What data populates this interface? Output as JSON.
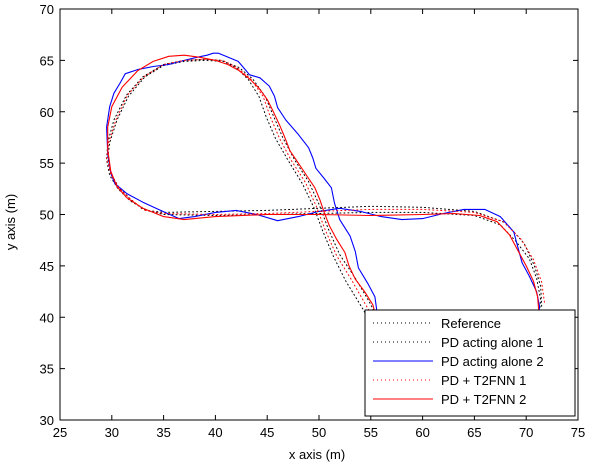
{
  "chart_data": {
    "type": "line",
    "title": "",
    "xlabel": "x axis (m)",
    "ylabel": "y axis (m)",
    "xlim": [
      25,
      75
    ],
    "ylim": [
      30,
      70
    ],
    "xticks": [
      "25",
      "30",
      "35",
      "40",
      "45",
      "50",
      "55",
      "60",
      "65",
      "70",
      "75"
    ],
    "yticks": [
      "30",
      "35",
      "40",
      "45",
      "50",
      "55",
      "60",
      "65",
      "70"
    ],
    "grid": false,
    "legend_position": "bottom-right",
    "series": [
      {
        "name": "Reference",
        "color": "#000000",
        "style": "dotted",
        "x": [
          56.0,
          54.8,
          53.5,
          52.0,
          50.9,
          50.0,
          49.0,
          47.6,
          46.5,
          45.6,
          44.8,
          43.6,
          42.3,
          40.8,
          39.0,
          37.0,
          35.0,
          33.2,
          31.6,
          30.5,
          29.8,
          29.6,
          29.9,
          30.7,
          31.8,
          33.0,
          35.0,
          40.0,
          45.0,
          50.0,
          55.0,
          60.0,
          65.0,
          67.5,
          69.0,
          70.3,
          71.0,
          71.4,
          71.2
        ],
        "y": [
          39.3,
          41.6,
          43.8,
          46.1,
          48.6,
          51.0,
          53.2,
          55.4,
          57.5,
          59.6,
          61.5,
          63.2,
          64.3,
          64.9,
          65.0,
          64.9,
          64.5,
          63.4,
          61.5,
          59.2,
          57.0,
          55.5,
          54.0,
          52.6,
          51.5,
          50.5,
          50.0,
          49.9,
          50.0,
          50.1,
          50.2,
          50.2,
          49.9,
          49.0,
          47.4,
          45.7,
          43.8,
          41.7,
          39.7
        ]
      },
      {
        "name": "PD acting alone 1",
        "color": "#000000",
        "style": "dotted",
        "x": [
          55.4,
          54.0,
          52.6,
          51.4,
          50.4,
          49.5,
          48.4,
          47.0,
          45.8,
          44.9,
          44.2,
          43.2,
          42.0,
          40.6,
          39.0,
          37.0,
          35.0,
          33.0,
          31.4,
          30.2,
          29.6,
          29.5,
          29.8,
          30.6,
          31.8,
          33.4,
          35.0,
          40.0,
          45.0,
          50.0,
          55.0,
          60.0,
          65.0,
          68.0,
          69.8,
          70.8,
          71.4,
          71.5
        ],
        "y": [
          38.8,
          41.2,
          43.5,
          45.9,
          48.3,
          50.7,
          53.0,
          55.3,
          57.4,
          59.5,
          61.5,
          63.1,
          64.3,
          65.0,
          65.1,
          65.0,
          64.6,
          63.4,
          61.6,
          59.2,
          57.0,
          55.3,
          53.8,
          52.5,
          51.3,
          50.4,
          50.2,
          50.3,
          50.4,
          50.6,
          50.8,
          50.7,
          50.3,
          49.2,
          47.2,
          45.0,
          43.0,
          41.0
        ]
      },
      {
        "name": "PD acting alone 2",
        "color": "#0000ff",
        "style": "solid",
        "x": [
          56.1,
          55.6,
          55.4,
          54.7,
          53.8,
          53.5,
          53.0,
          52.0,
          51.5,
          51.2,
          50.5,
          49.7,
          49.4,
          49.0,
          48.0,
          46.8,
          46.0,
          45.7,
          45.2,
          44.3,
          43.3,
          42.8,
          42.2,
          41.0,
          40.3,
          39.8,
          39.2,
          38.2,
          37.0,
          35.5,
          34.0,
          32.5,
          31.3,
          30.8,
          30.2,
          29.8,
          29.5,
          29.6,
          29.9,
          30.3,
          31.5,
          33.0,
          34.5,
          36.5,
          38.0,
          40.0,
          42.0,
          44.0,
          46.0,
          48.0,
          50.0,
          52.0,
          54.0,
          56.0,
          58.0,
          60.0,
          62.0,
          64.0,
          66.0,
          67.5,
          68.8,
          69.2,
          69.6,
          70.3,
          71.0,
          71.3,
          71.0
        ],
        "y": [
          38.9,
          40.5,
          42.0,
          43.3,
          44.8,
          46.4,
          47.9,
          49.5,
          51.1,
          52.6,
          53.5,
          54.5,
          55.5,
          56.5,
          57.8,
          59.2,
          60.4,
          61.5,
          62.5,
          63.3,
          63.6,
          64.2,
          64.9,
          65.4,
          65.7,
          65.7,
          65.5,
          65.3,
          65.0,
          64.6,
          64.4,
          64.1,
          63.7,
          62.8,
          61.8,
          60.5,
          58.5,
          56.0,
          54.0,
          53.0,
          52.0,
          51.2,
          50.5,
          49.6,
          49.8,
          50.2,
          50.4,
          50.0,
          49.4,
          49.8,
          50.3,
          50.6,
          50.3,
          49.8,
          49.5,
          49.6,
          50.1,
          50.5,
          50.5,
          49.8,
          48.3,
          46.8,
          45.3,
          44.0,
          42.5,
          41.0,
          39.6
        ]
      },
      {
        "name": "PD + T2FNN 1",
        "color": "#ff0000",
        "style": "dotted",
        "x": [
          55.8,
          54.4,
          53.1,
          51.7,
          50.6,
          49.7,
          48.7,
          47.3,
          46.2,
          45.3,
          44.6,
          43.4,
          42.1,
          40.7,
          39.0,
          37.0,
          35.0,
          33.1,
          31.5,
          30.4,
          29.7,
          29.5,
          29.9,
          30.7,
          31.8,
          33.2,
          35.0,
          40.0,
          45.0,
          50.0,
          55.0,
          60.0,
          65.0,
          67.8,
          69.5,
          70.7,
          71.5,
          71.8
        ],
        "y": [
          39.0,
          41.4,
          43.7,
          46.0,
          48.5,
          50.9,
          53.1,
          55.3,
          57.4,
          59.5,
          61.5,
          63.2,
          64.3,
          65.0,
          65.1,
          65.0,
          64.6,
          63.4,
          61.6,
          59.2,
          57.0,
          55.4,
          53.9,
          52.6,
          51.5,
          50.4,
          50.1,
          50.0,
          50.1,
          50.3,
          50.5,
          50.5,
          50.2,
          49.3,
          47.6,
          45.6,
          43.4,
          41.2
        ]
      },
      {
        "name": "PD + T2FNN 2",
        "color": "#ff0000",
        "style": "solid",
        "x": [
          55.5,
          55.2,
          54.4,
          53.5,
          52.9,
          52.5,
          51.7,
          51.0,
          50.5,
          50.1,
          49.6,
          48.8,
          48.0,
          47.2,
          46.7,
          46.2,
          45.6,
          45.0,
          44.2,
          43.3,
          42.3,
          41.2,
          40.0,
          38.5,
          37.0,
          35.5,
          34.0,
          32.5,
          31.0,
          30.0,
          29.6,
          29.6,
          29.9,
          30.5,
          31.5,
          33.0,
          35.0,
          37.0,
          40.0,
          45.0,
          50.0,
          55.0,
          60.0,
          63.0,
          65.5,
          67.2,
          68.4,
          69.2,
          70.0,
          70.7,
          71.1,
          71.2
        ],
        "y": [
          40.0,
          41.2,
          42.5,
          43.7,
          45.0,
          46.3,
          47.6,
          48.9,
          50.2,
          51.4,
          52.6,
          53.8,
          55.0,
          56.2,
          57.5,
          58.7,
          60.0,
          61.2,
          62.3,
          63.2,
          64.0,
          64.6,
          65.0,
          65.3,
          65.5,
          65.4,
          64.9,
          64.0,
          62.4,
          60.5,
          58.5,
          56.3,
          54.2,
          52.7,
          51.6,
          50.6,
          49.8,
          49.5,
          49.8,
          50.0,
          50.0,
          49.9,
          50.0,
          50.1,
          49.9,
          49.3,
          48.0,
          46.5,
          45.0,
          43.5,
          42.0,
          40.8
        ]
      }
    ]
  }
}
